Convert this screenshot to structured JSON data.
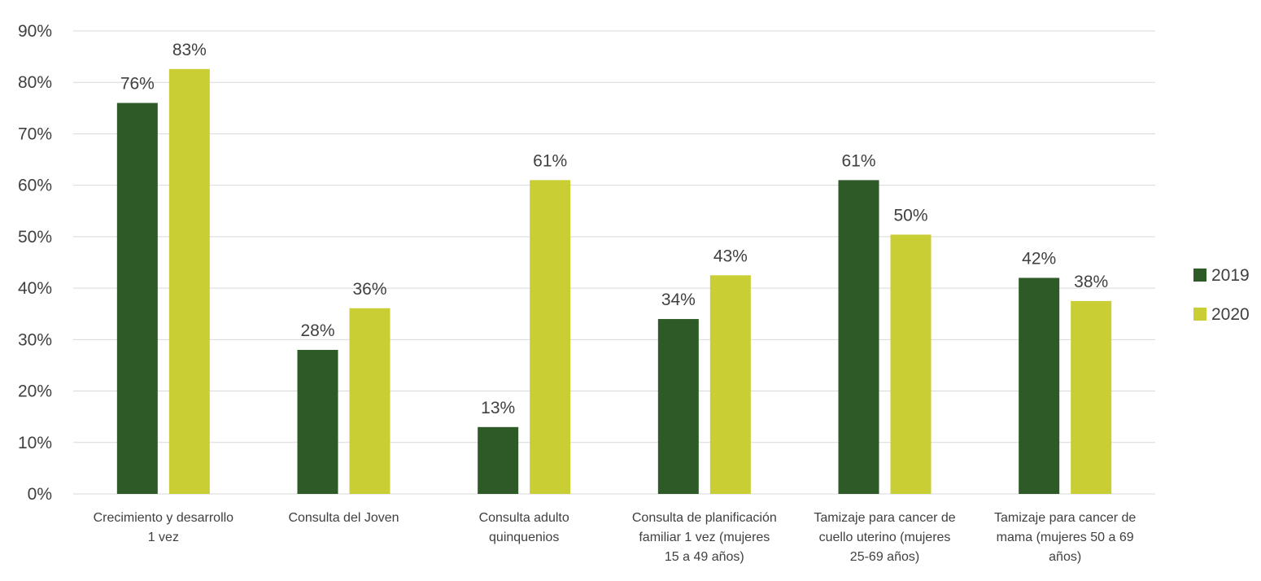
{
  "chart_data": {
    "type": "bar",
    "categories": [
      [
        "Crecimiento y desarrollo",
        "1 vez"
      ],
      [
        "Consulta del Joven"
      ],
      [
        "Consulta adulto",
        "quinquenios"
      ],
      [
        "Consulta de planificación",
        "familiar 1 vez (mujeres",
        "15 a 49 años)"
      ],
      [
        "Tamizaje para cancer de",
        "cuello uterino (mujeres",
        "25-69 años)"
      ],
      [
        "Tamizaje para cancer de",
        "mama (mujeres 50 a 69",
        "años)"
      ]
    ],
    "series": [
      {
        "name": "2019",
        "color": "#2e5a27",
        "values": [
          76,
          28,
          13,
          34,
          61,
          42
        ],
        "labels": [
          "76%",
          "28%",
          "13%",
          "34%",
          "61%",
          "42%"
        ]
      },
      {
        "name": "2020",
        "color": "#c8ce34",
        "values": [
          82.6,
          36.1,
          61,
          42.5,
          50.4,
          37.5
        ],
        "labels": [
          "83%",
          "36%",
          "61%",
          "43%",
          "50%",
          "38%"
        ]
      }
    ],
    "yticks": [
      "0%",
      "10%",
      "20%",
      "30%",
      "40%",
      "50%",
      "60%",
      "70%",
      "80%",
      "90%"
    ],
    "ylim": [
      0,
      90
    ],
    "grid": true,
    "legend": "right"
  }
}
